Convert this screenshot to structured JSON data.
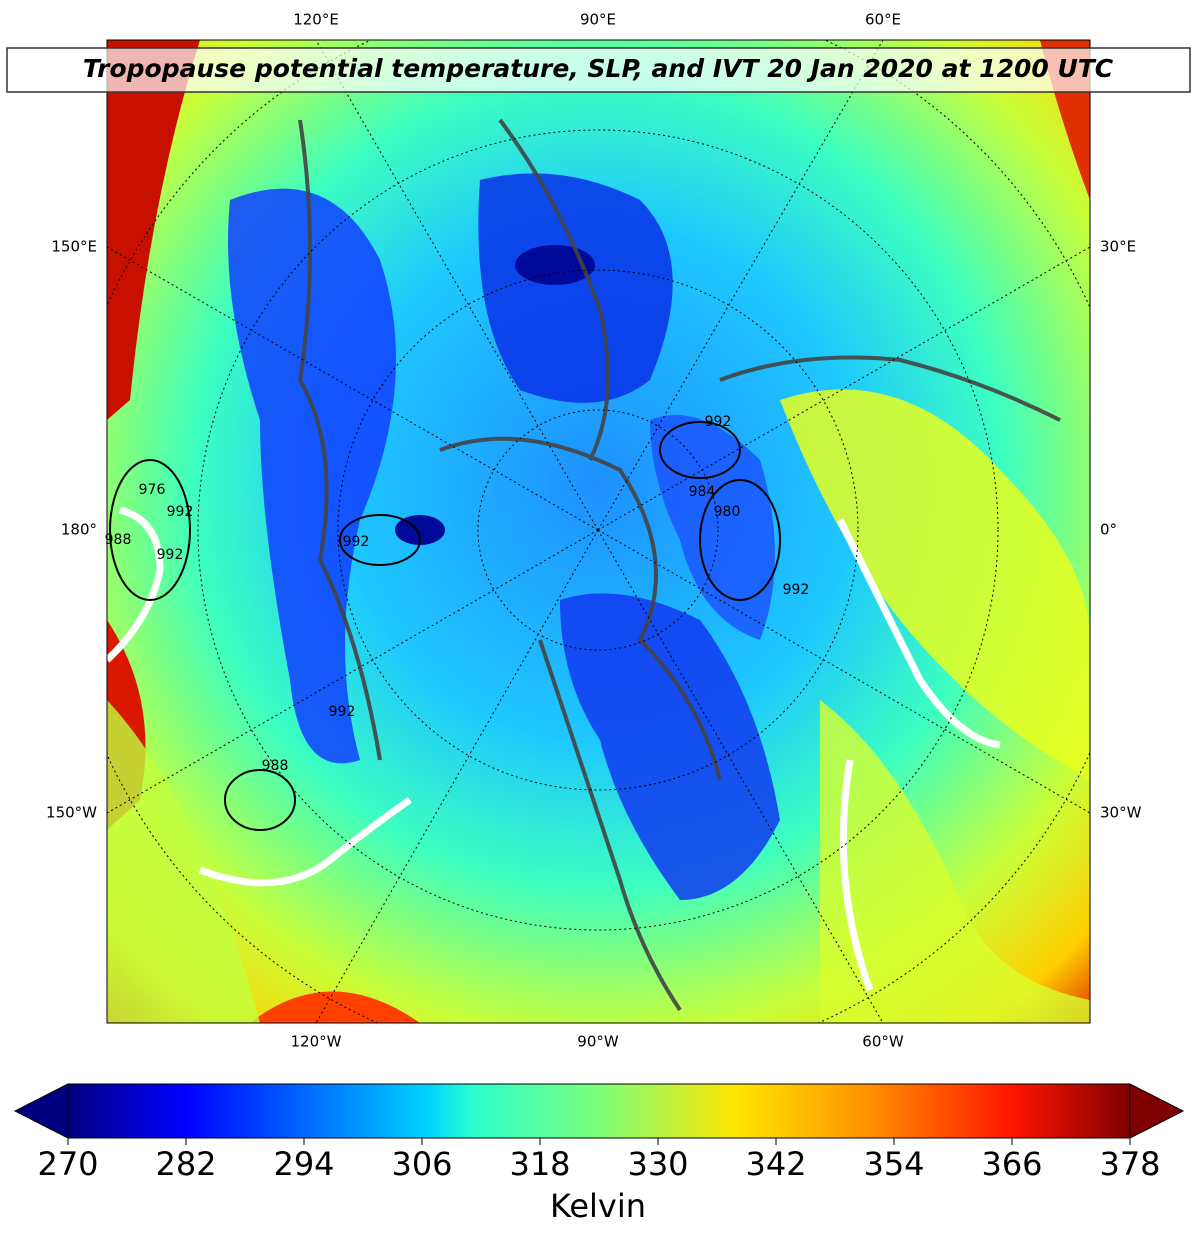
{
  "title": "Tropopause potential temperature, SLP, and IVT 20 Jan 2020 at 1200 UTC",
  "map": {
    "lon_labels_top": [
      "120°E",
      "90°E",
      "60°E"
    ],
    "lon_labels_left": [
      "150°E",
      "180°",
      "150°W"
    ],
    "lon_labels_right": [
      "30°E",
      "0°",
      "30°W"
    ],
    "lon_labels_bottom": [
      "120°W",
      "90°W",
      "60°W"
    ],
    "contour_labels": [
      992,
      984,
      980,
      992,
      992,
      976,
      988,
      992,
      992,
      992,
      988
    ]
  },
  "colorbar": {
    "label": "Kelvin",
    "range": [
      270,
      378
    ],
    "ticks": [
      270,
      282,
      294,
      306,
      318,
      330,
      342,
      354,
      366,
      378
    ],
    "colormap": "jet"
  }
}
